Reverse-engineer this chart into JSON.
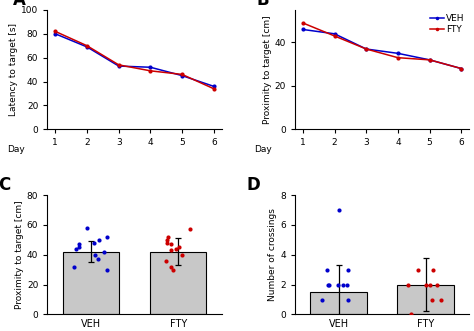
{
  "panel_A": {
    "days": [
      1,
      2,
      3,
      4,
      5,
      6
    ],
    "veh": [
      80,
      69,
      53,
      52,
      45,
      36
    ],
    "fty": [
      82,
      70,
      54,
      49,
      46,
      34
    ],
    "ylabel": "Latency to target [s]",
    "ylim": [
      0,
      100
    ],
    "yticks": [
      0,
      20,
      40,
      60,
      80,
      100
    ]
  },
  "panel_B": {
    "days": [
      1,
      2,
      3,
      4,
      5,
      6
    ],
    "veh": [
      46,
      44,
      37,
      35,
      32,
      28
    ],
    "fty": [
      49,
      43,
      37,
      33,
      32,
      28
    ],
    "ylabel": "Proximity to target [cm]",
    "ylim": [
      0,
      55
    ],
    "yticks": [
      0,
      20,
      40
    ]
  },
  "panel_C": {
    "veh_bar": 42,
    "fty_bar": 42,
    "veh_err": 7,
    "fty_err": 9,
    "veh_points": [
      58,
      52,
      50,
      48,
      47,
      45,
      44,
      42,
      40,
      37,
      32,
      30
    ],
    "fty_points": [
      57,
      52,
      50,
      48,
      47,
      45,
      44,
      43,
      40,
      36,
      32,
      30
    ],
    "ylabel": "Proximity to target [cm]",
    "ylim": [
      0,
      80
    ],
    "yticks": [
      0,
      20,
      40,
      60,
      80
    ],
    "categories": [
      "VEH",
      "FTY"
    ]
  },
  "panel_D": {
    "veh_bar": 1.5,
    "fty_bar": 2.0,
    "veh_err": 1.8,
    "fty_err": 1.8,
    "veh_points": [
      1,
      1,
      2,
      2,
      2,
      2,
      2,
      3,
      3
    ],
    "fty_points": [
      0,
      1,
      1,
      2,
      2,
      2,
      2,
      3,
      3
    ],
    "veh_outlier": 7,
    "ylabel": "Number of crossings",
    "ylim": [
      0,
      8
    ],
    "yticks": [
      0,
      2,
      4,
      6,
      8
    ],
    "categories": [
      "VEH",
      "FTY"
    ]
  },
  "veh_color": "#0000CC",
  "fty_color": "#CC0000",
  "bar_color": "#C8C8C8",
  "bar_edge_color": "#000000"
}
